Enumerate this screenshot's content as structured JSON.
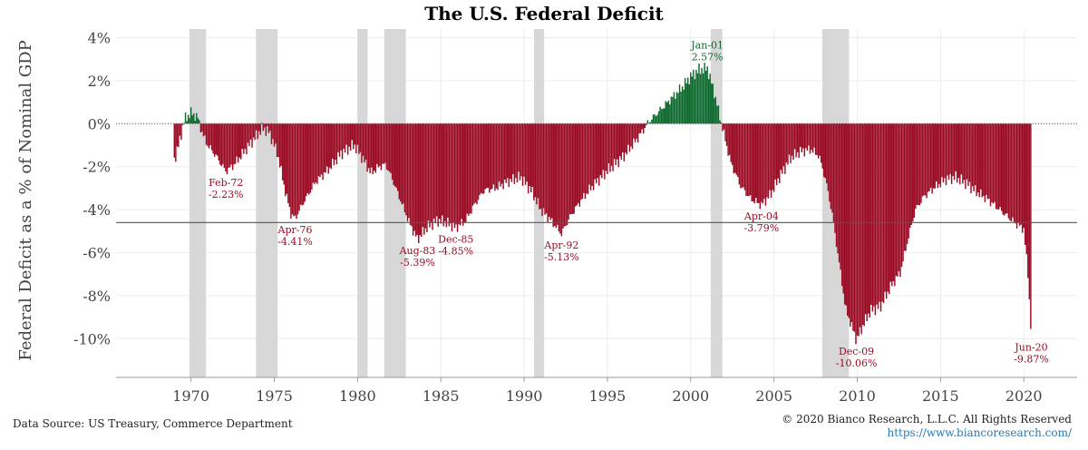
{
  "chart_data": {
    "type": "area",
    "title": "The U.S. Federal Deficit",
    "ylabel": "Federal Deficit as a % of Nominal GDP",
    "xlabel": "",
    "xlim": [
      1965.5,
      2023.2
    ],
    "ylim": [
      -11.8,
      4.4
    ],
    "y_ticks": [
      4,
      2,
      0,
      -2,
      -4,
      -6,
      -8,
      -10
    ],
    "y_tick_labels": [
      "4%",
      "2%",
      "0%",
      "-2%",
      "-4%",
      "-6%",
      "-8%",
      "-10%"
    ],
    "x_ticks": [
      1970,
      1975,
      1980,
      1985,
      1990,
      1995,
      2000,
      2005,
      2010,
      2015,
      2020
    ],
    "x_tick_labels": [
      "1970",
      "1975",
      "1980",
      "1985",
      "1990",
      "1995",
      "2000",
      "2005",
      "2010",
      "2015",
      "2020"
    ],
    "average_line": -4.6,
    "positive_color": "#0e6a2e",
    "negative_color": "#9b0a23",
    "recession_color": "#d7d7d7",
    "recessions": [
      [
        1969.9,
        1970.9
      ],
      [
        1973.9,
        1975.2
      ],
      [
        1980.0,
        1980.6
      ],
      [
        1981.6,
        1982.9
      ],
      [
        1990.6,
        1991.2
      ],
      [
        2001.2,
        2001.9
      ],
      [
        2007.9,
        2009.5
      ]
    ],
    "series": [
      {
        "x": [
          1969.0,
          1969.3,
          1969.6,
          1970.0,
          1970.4,
          1970.7,
          1971.0,
          1971.5,
          1972.1,
          1972.6,
          1973.2,
          1973.8,
          1974.3,
          1974.7,
          1975.2,
          1975.7,
          1976.0,
          1976.25,
          1976.8,
          1977.5,
          1978.3,
          1979.0,
          1979.8,
          1980.3,
          1980.8,
          1981.3,
          1981.7,
          1982.1,
          1982.6,
          1983.1,
          1983.6,
          1984.2,
          1984.8,
          1985.3,
          1985.9,
          1986.5,
          1987.0,
          1987.6,
          1988.3,
          1989.0,
          1989.8,
          1990.5,
          1991.0,
          1991.6,
          1992.25,
          1992.7,
          1993.3,
          1994.0,
          1995.0,
          1996.0,
          1996.8,
          1997.5,
          1998.0,
          1998.5,
          1999.0,
          1999.5,
          2000.0,
          2000.5,
          2001.0,
          2001.4,
          2001.7,
          2002.0,
          2002.4,
          2003.0,
          2003.6,
          2004.25,
          2004.8,
          2005.4,
          2006.0,
          2006.6,
          2007.2,
          2007.7,
          2008.1,
          2008.5,
          2008.9,
          2009.3,
          2009.95,
          2010.4,
          2010.8,
          2011.4,
          2012.0,
          2012.6,
          2013.1,
          2013.5,
          2014.0,
          2014.6,
          2015.3,
          2015.9,
          2016.6,
          2017.2,
          2017.8,
          2018.4,
          2019.0,
          2019.6,
          2020.0,
          2020.25,
          2020.45
        ],
        "y": [
          -1.7,
          -0.9,
          0.2,
          0.5,
          0.3,
          -0.5,
          -1.0,
          -1.5,
          -2.23,
          -1.9,
          -1.3,
          -0.7,
          -0.2,
          -0.4,
          -1.4,
          -3.3,
          -4.2,
          -4.41,
          -3.6,
          -2.7,
          -2.1,
          -1.4,
          -1.0,
          -1.6,
          -2.3,
          -2.0,
          -1.9,
          -2.6,
          -3.6,
          -4.6,
          -5.39,
          -4.8,
          -4.5,
          -4.6,
          -4.85,
          -4.5,
          -3.8,
          -3.1,
          -3.0,
          -2.7,
          -2.5,
          -3.2,
          -4.0,
          -4.5,
          -5.13,
          -4.4,
          -3.7,
          -3.0,
          -2.2,
          -1.5,
          -0.7,
          0.1,
          0.5,
          0.9,
          1.3,
          1.7,
          2.2,
          2.5,
          2.57,
          1.5,
          0.5,
          -0.5,
          -1.8,
          -2.9,
          -3.5,
          -3.79,
          -3.3,
          -2.4,
          -1.6,
          -1.3,
          -1.2,
          -1.5,
          -2.6,
          -4.2,
          -6.4,
          -8.6,
          -10.06,
          -9.3,
          -8.7,
          -8.5,
          -7.6,
          -6.9,
          -5.2,
          -4.0,
          -3.4,
          -3.0,
          -2.6,
          -2.5,
          -2.8,
          -3.2,
          -3.5,
          -3.9,
          -4.3,
          -4.7,
          -4.9,
          -7.0,
          -9.87
        ]
      }
    ],
    "annotations": [
      {
        "x": 1972.1,
        "y": -2.23,
        "label": "Feb-72",
        "value": "-2.23%",
        "position": "below"
      },
      {
        "x": 1976.25,
        "y": -4.41,
        "label": "Apr-76",
        "value": "-4.41%",
        "position": "below"
      },
      {
        "x": 1983.6,
        "y": -5.39,
        "label": "Aug-83",
        "value": "-5.39%",
        "position": "below"
      },
      {
        "x": 1985.9,
        "y": -4.85,
        "label": "Dec-85",
        "value": "-4.85%",
        "position": "below"
      },
      {
        "x": 1992.25,
        "y": -5.13,
        "label": "Apr-92",
        "value": "-5.13%",
        "position": "below"
      },
      {
        "x": 2001.0,
        "y": 2.57,
        "label": "Jan-01",
        "value": "2.57%",
        "position": "above"
      },
      {
        "x": 2004.25,
        "y": -3.79,
        "label": "Apr-04",
        "value": "-3.79%",
        "position": "below"
      },
      {
        "x": 2009.95,
        "y": -10.06,
        "label": "Dec-09",
        "value": "-10.06%",
        "position": "below"
      },
      {
        "x": 2020.45,
        "y": -9.87,
        "label": "Jun-20",
        "value": "-9.87%",
        "position": "below"
      }
    ],
    "grid": true
  },
  "footer": {
    "source": "Data Source: US Treasury, Commerce Department",
    "copyright": "© 2020 Bianco Research, L.L.C. All Rights Reserved",
    "url": "https://www.biancoresearch.com/"
  }
}
